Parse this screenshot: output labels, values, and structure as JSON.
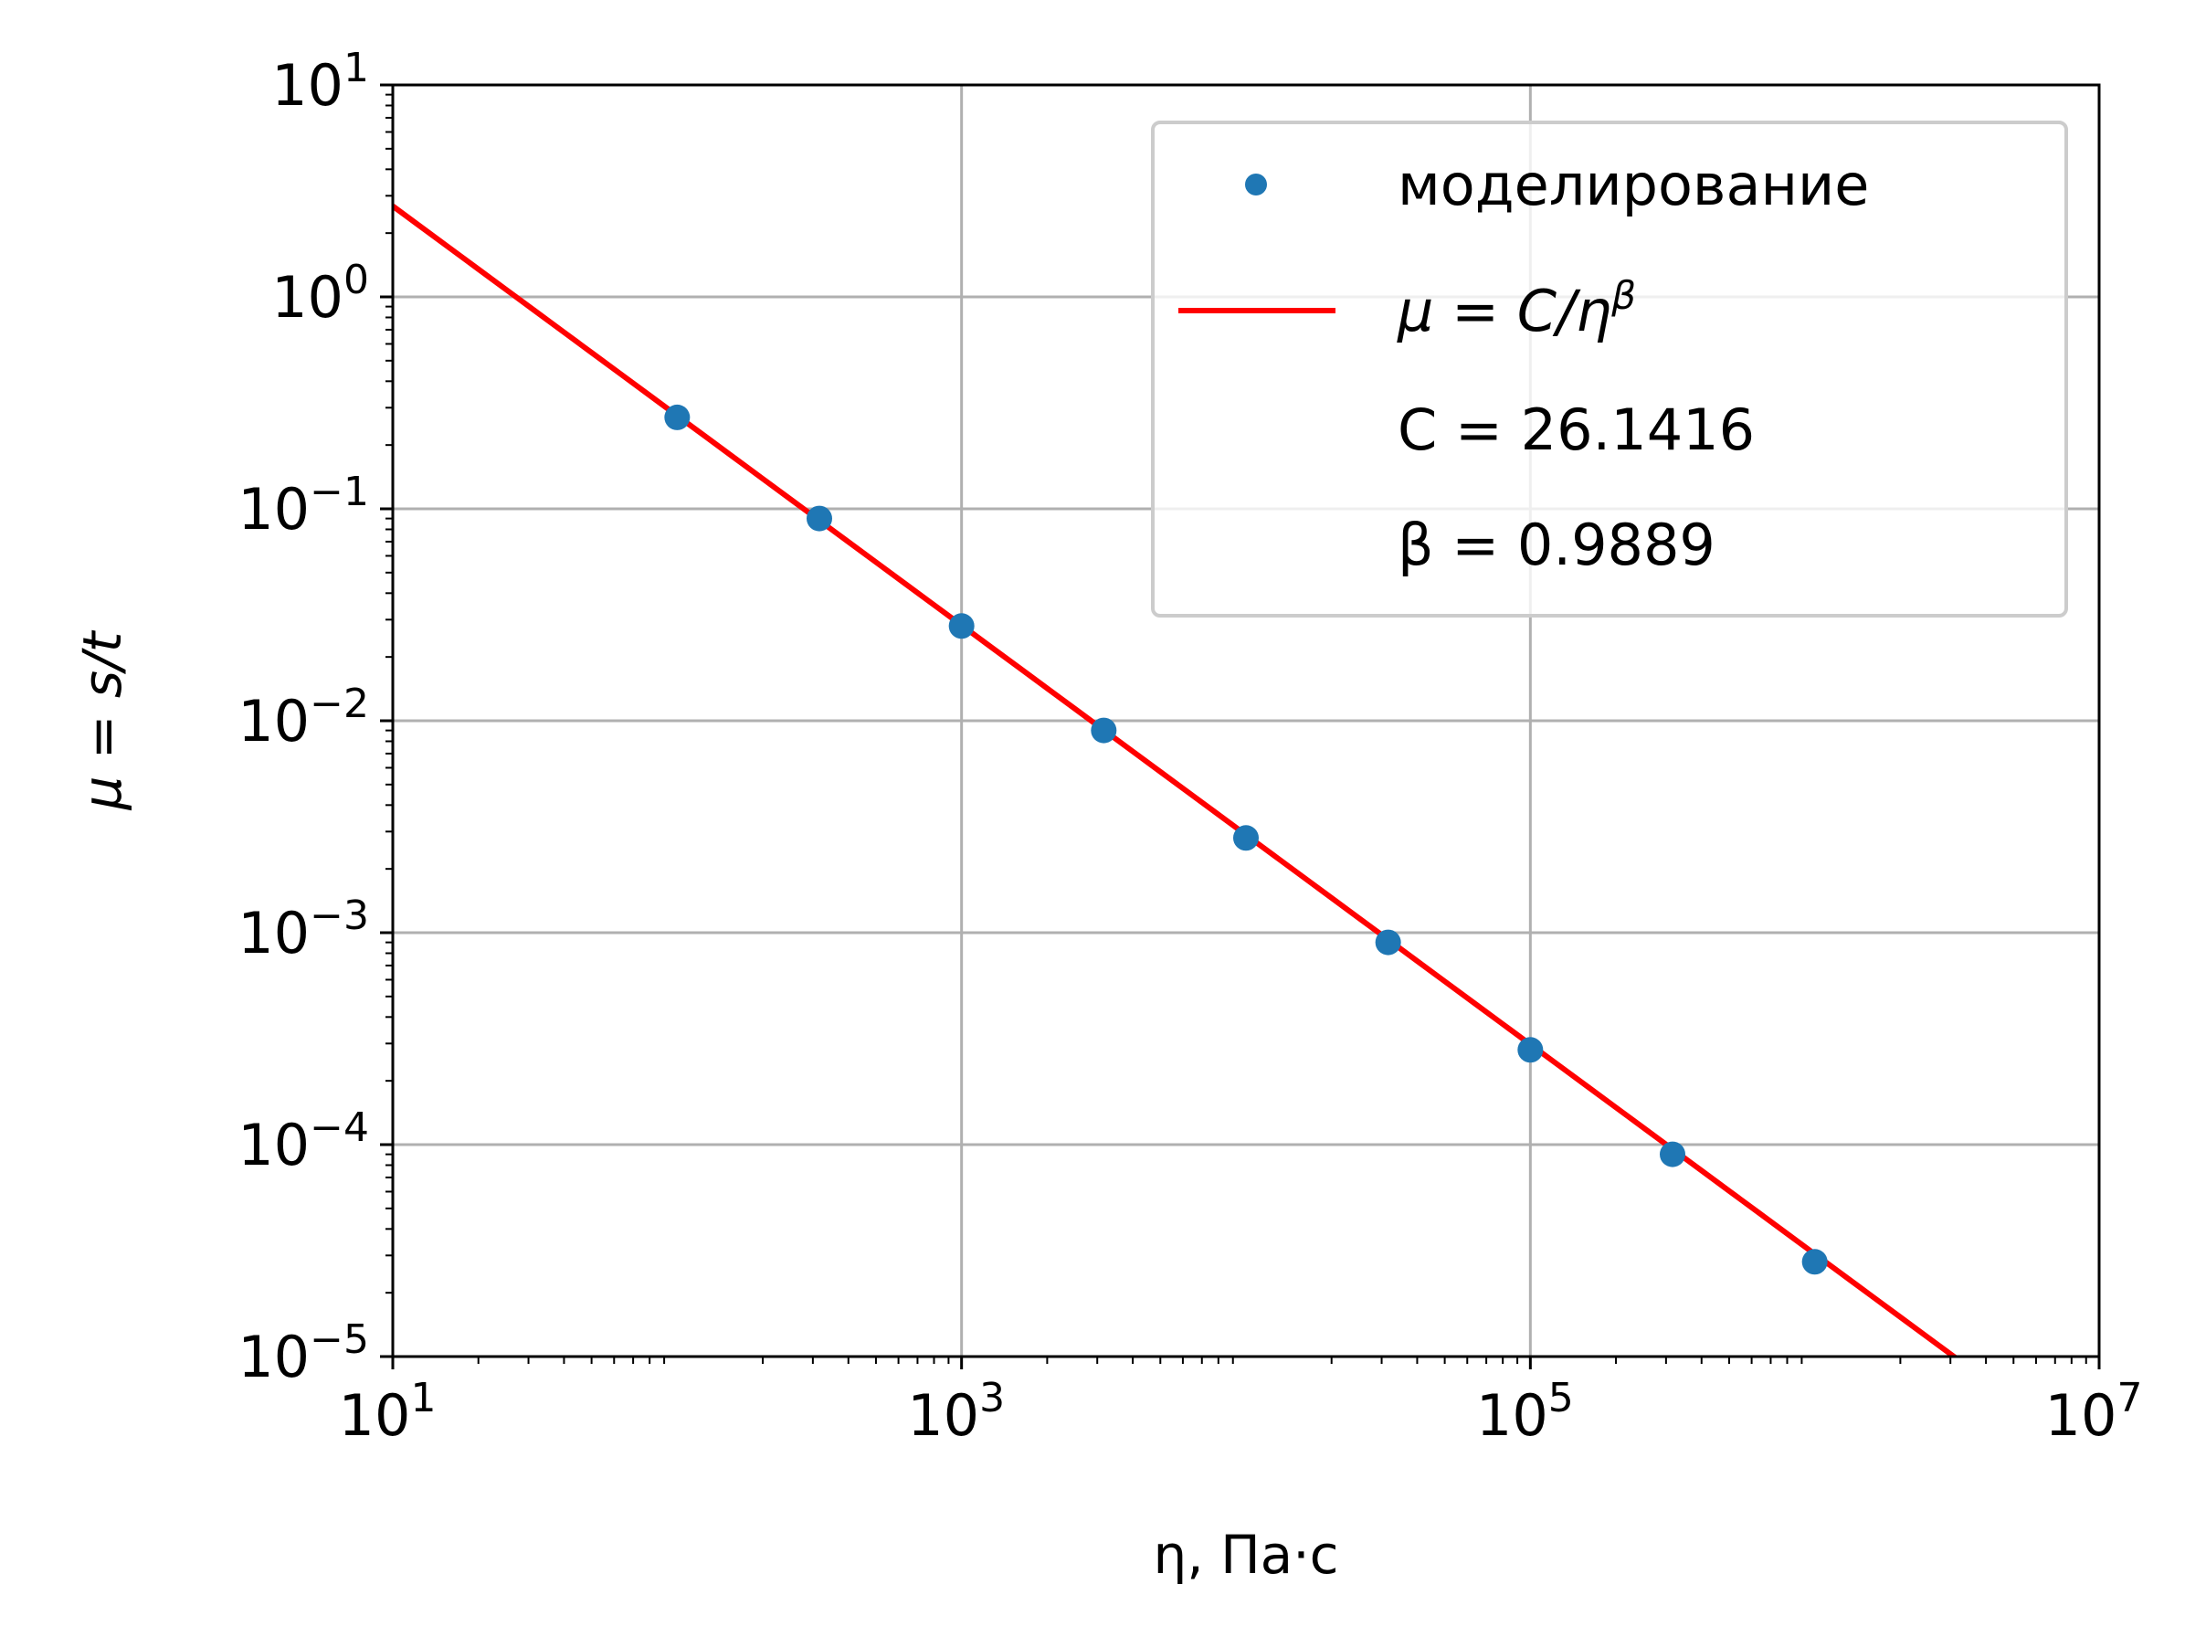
{
  "chart_data": {
    "type": "scatter",
    "xscale": "log",
    "yscale": "log",
    "xlim": [
      10,
      10000000
    ],
    "ylim": [
      1e-05,
      10
    ],
    "xlabel": "η, Па·с",
    "ylabel": "μ = s/t",
    "grid": true,
    "legend_position": "top-right",
    "x_ticks": [
      {
        "value": 10,
        "base": "10",
        "exp": "1"
      },
      {
        "value": 1000,
        "base": "10",
        "exp": "3"
      },
      {
        "value": 100000,
        "base": "10",
        "exp": "5"
      },
      {
        "value": 10000000,
        "base": "10",
        "exp": "7"
      }
    ],
    "y_ticks": [
      {
        "value": 10,
        "base": "10",
        "exp": "1"
      },
      {
        "value": 1,
        "base": "10",
        "exp": "0"
      },
      {
        "value": 0.1,
        "base": "10",
        "exp": "−1"
      },
      {
        "value": 0.01,
        "base": "10",
        "exp": "−2"
      },
      {
        "value": 0.001,
        "base": "10",
        "exp": "−3"
      },
      {
        "value": 0.0001,
        "base": "10",
        "exp": "−4"
      },
      {
        "value": 1e-05,
        "base": "10",
        "exp": "−5"
      }
    ],
    "series": [
      {
        "name": "моделирование",
        "kind": "points",
        "color": "#1f77b4",
        "x": [
          100,
          316.2,
          1000,
          3162,
          10000,
          31623,
          100000,
          316228,
          1000000
        ],
        "y": [
          0.27,
          0.09,
          0.028,
          0.009,
          0.0028,
          0.0009,
          0.00028,
          9e-05,
          2.8e-05
        ]
      },
      {
        "name": "μ = C/η^β",
        "kind": "line",
        "color": "#ff0000",
        "formula": {
          "C": 26.1416,
          "beta": 0.9889
        }
      }
    ],
    "legend": {
      "entries": [
        {
          "label": "моделирование"
        },
        {
          "label_main": "μ = C/η",
          "label_exp": "β"
        }
      ],
      "extra_lines": [
        "C = 26.1416",
        "β = 0.9889"
      ]
    }
  }
}
